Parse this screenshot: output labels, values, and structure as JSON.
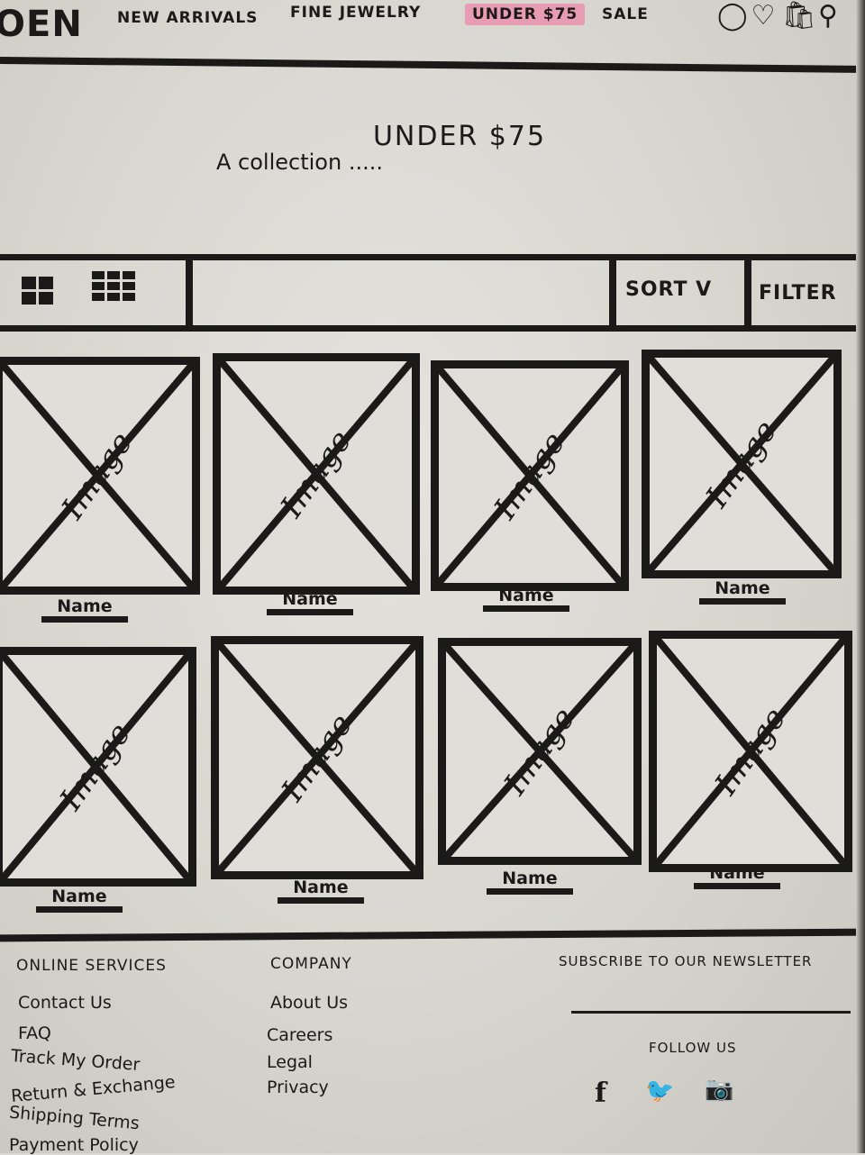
{
  "header": {
    "logo": "OEN",
    "nav": [
      {
        "label": "New Arrivals"
      },
      {
        "label": "Fine Jewelry"
      },
      {
        "label": "Under $75"
      },
      {
        "label": "Sale"
      }
    ],
    "icons": [
      "account-icon",
      "wishlist-icon",
      "bag-icon",
      "search-icon"
    ]
  },
  "hero": {
    "title": "Under $75",
    "subtitle": "A collection ....."
  },
  "toolbar": {
    "sort_label": "Sort V",
    "filter_label": "Filter"
  },
  "products": [
    {
      "image_label": "Image",
      "name": "Name"
    },
    {
      "image_label": "Image",
      "name": "Name"
    },
    {
      "image_label": "Image",
      "name": "Name"
    },
    {
      "image_label": "Image",
      "name": "Name"
    },
    {
      "image_label": "Image",
      "name": "Name"
    },
    {
      "image_label": "Image",
      "name": "Name"
    },
    {
      "image_label": "Image",
      "name": "Name"
    },
    {
      "image_label": "Image",
      "name": "Name"
    }
  ],
  "footer": {
    "online_services": {
      "heading": "Online Services",
      "links": [
        "Contact Us",
        "FAQ",
        "Track My Order",
        "Return & Exchange",
        "Shipping Terms",
        "Payment Policy"
      ]
    },
    "company": {
      "heading": "Company",
      "links": [
        "About Us",
        "Careers",
        "Legal",
        "Privacy"
      ]
    },
    "newsletter": {
      "heading": "Subscribe to our newsletter",
      "follow_label": "Follow us"
    },
    "social": [
      "f",
      "🐦",
      "📷"
    ]
  },
  "colors": {
    "ink": "#1c1a18",
    "paper": "#e1ded9",
    "active_highlight": "#e89cb4"
  }
}
